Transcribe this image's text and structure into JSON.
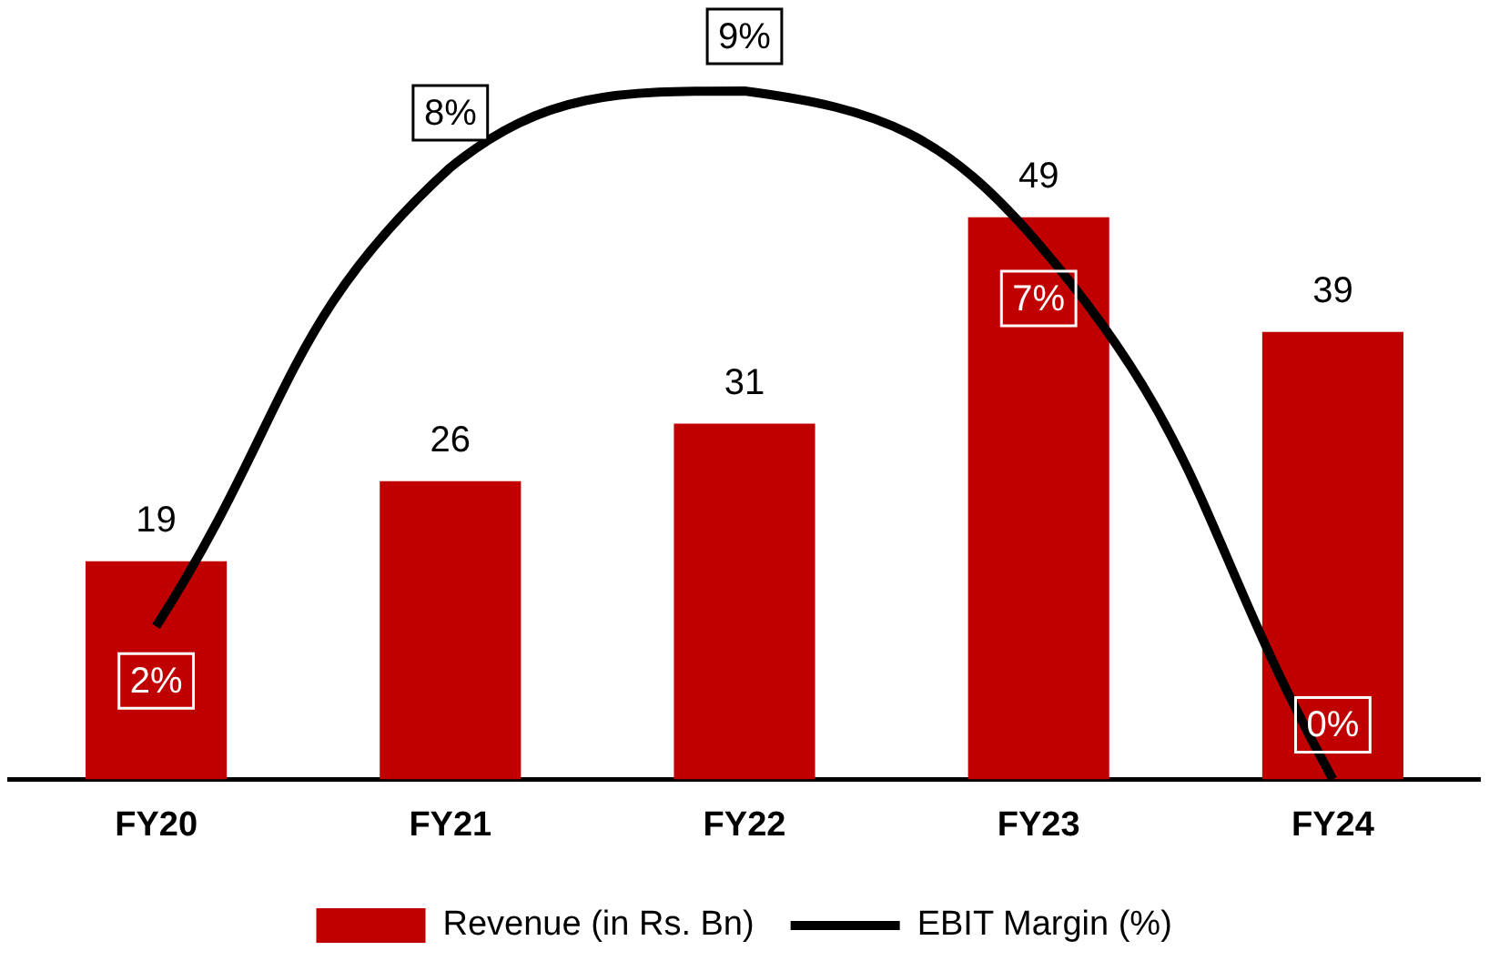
{
  "chart_data": {
    "type": "bar",
    "categories": [
      "FY20",
      "FY21",
      "FY22",
      "FY23",
      "FY24"
    ],
    "series": [
      {
        "name": "Revenue (in Rs. Bn)",
        "color": "#c00000",
        "values": [
          19,
          26,
          31,
          49,
          39
        ]
      },
      {
        "name": "EBIT Margin (%)",
        "type": "line",
        "axis": "y2",
        "color": "#000000",
        "values": [
          2,
          8,
          9,
          7,
          0
        ],
        "value_labels": [
          "2%",
          "8%",
          "9%",
          "7%",
          "0%"
        ]
      }
    ],
    "data_labels": true,
    "legend": "bottom",
    "tick_labels": "x"
  }
}
